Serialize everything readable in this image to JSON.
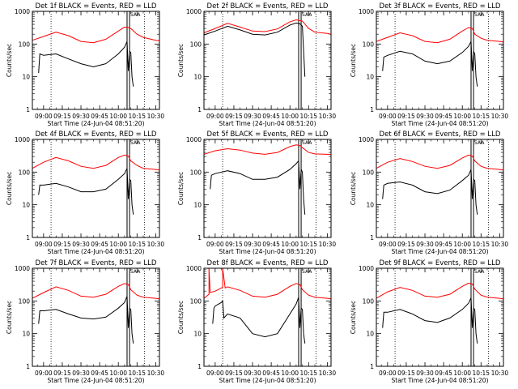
{
  "chart_data": [
    {
      "type": "line",
      "title": "Det 1f BLACK = Events, RED = LLD",
      "xlabel": "Start Time (24-Jun-04 08:51:20)",
      "ylabel": "Counts/sec",
      "xticks": [
        "09:00",
        "09:15",
        "09:30",
        "09:45",
        "10:00",
        "10:15",
        "10:30"
      ],
      "xlim": [
        "08:51",
        "10:33"
      ],
      "ylim": [
        1,
        1000
      ],
      "yscale": "log",
      "yticks": [
        "1",
        "10",
        "100",
        "1000"
      ],
      "grid": false,
      "series": [
        {
          "color": "#ff0000",
          "x": [
            "08:51",
            "09:00",
            "09:10",
            "09:20",
            "09:30",
            "09:40",
            "09:50",
            "10:00",
            "10:05",
            "10:08",
            "10:10",
            "10:15",
            "10:20",
            "10:30",
            "10:33"
          ],
          "values": [
            130,
            170,
            230,
            180,
            120,
            110,
            140,
            250,
            330,
            320,
            300,
            200,
            160,
            130,
            125
          ]
        },
        {
          "color": "#000000",
          "x": [
            "08:56",
            "08:57",
            "09:00",
            "09:10",
            "09:20",
            "09:30",
            "09:40",
            "09:50",
            "10:00",
            "10:05",
            "10:07",
            "10:08",
            "10:09",
            "10:10",
            "10:11",
            "10:12"
          ],
          "values": [
            13,
            50,
            45,
            50,
            35,
            25,
            20,
            25,
            50,
            80,
            120,
            15,
            60,
            55,
            10,
            5
          ]
        }
      ],
      "markers": {
        "dotted": [
          "09:06",
          "10:21"
        ],
        "solid": [
          "10:07",
          "10:09"
        ],
        "label": "SAA"
      }
    },
    {
      "type": "line",
      "title": "Det 2f BLACK = Events, RED = LLD",
      "xlabel": "Start Time (24-Jun-04 08:51:20)",
      "ylabel": "Counts/sec",
      "xticks": [
        "09:00",
        "09:15",
        "09:30",
        "09:45",
        "10:00",
        "10:15",
        "10:30"
      ],
      "xlim": [
        "08:51",
        "10:33"
      ],
      "ylim": [
        1,
        1000
      ],
      "yscale": "log",
      "yticks": [
        "1",
        "10",
        "100",
        "1000"
      ],
      "grid": false,
      "series": [
        {
          "color": "#ff0000",
          "x": [
            "08:51",
            "09:00",
            "09:10",
            "09:20",
            "09:30",
            "09:40",
            "09:50",
            "10:00",
            "10:05",
            "10:10",
            "10:15",
            "10:20",
            "10:30",
            "10:33"
          ],
          "values": [
            220,
            300,
            430,
            330,
            250,
            240,
            290,
            480,
            550,
            500,
            300,
            230,
            210,
            200
          ]
        },
        {
          "color": "#000000",
          "x": [
            "08:51",
            "09:00",
            "09:10",
            "09:20",
            "09:30",
            "09:40",
            "09:50",
            "10:00",
            "10:05",
            "10:08",
            "10:10",
            "10:12"
          ],
          "values": [
            190,
            250,
            350,
            270,
            200,
            190,
            230,
            380,
            440,
            420,
            350,
            10
          ]
        }
      ],
      "markers": {
        "dotted": [
          "09:06",
          "10:21"
        ],
        "solid": [
          "10:07",
          "10:09"
        ],
        "label": "SAA"
      }
    },
    {
      "type": "line",
      "title": "Det 3f BLACK = Events, RED = LLD",
      "xlabel": "Start Time (24-Jun-04 08:51:20)",
      "ylabel": "Counts/sec",
      "xticks": [
        "09:00",
        "09:15",
        "09:30",
        "09:45",
        "10:00",
        "10:15",
        "10:30"
      ],
      "xlim": [
        "08:51",
        "10:33"
      ],
      "ylim": [
        1,
        1000
      ],
      "yscale": "log",
      "yticks": [
        "1",
        "10",
        "100",
        "1000"
      ],
      "grid": false,
      "series": [
        {
          "color": "#ff0000",
          "x": [
            "08:51",
            "09:00",
            "09:10",
            "09:20",
            "09:30",
            "09:40",
            "09:50",
            "10:00",
            "10:05",
            "10:08",
            "10:10",
            "10:15",
            "10:20",
            "10:30",
            "10:33"
          ],
          "values": [
            120,
            160,
            220,
            180,
            120,
            110,
            140,
            250,
            320,
            300,
            200,
            150,
            130,
            120,
            115
          ]
        },
        {
          "color": "#000000",
          "x": [
            "08:56",
            "08:57",
            "09:00",
            "09:10",
            "09:20",
            "09:30",
            "09:40",
            "09:50",
            "10:00",
            "10:05",
            "10:07",
            "10:08",
            "10:09",
            "10:10",
            "10:11",
            "10:12"
          ],
          "values": [
            15,
            40,
            45,
            60,
            50,
            30,
            25,
            30,
            55,
            85,
            120,
            15,
            60,
            50,
            10,
            5
          ]
        }
      ],
      "markers": {
        "dotted": [
          "09:06",
          "10:21"
        ],
        "solid": [
          "10:07",
          "10:09"
        ],
        "label": "SAA"
      }
    },
    {
      "type": "line",
      "title": "Det 4f BLACK = Events, RED = LLD",
      "xlabel": "Start Time (24-Jun-04 08:51:20)",
      "ylabel": "Counts/sec",
      "xticks": [
        "09:00",
        "09:15",
        "09:30",
        "09:45",
        "10:00",
        "10:15",
        "10:30"
      ],
      "xlim": [
        "08:51",
        "10:33"
      ],
      "ylim": [
        1,
        1000
      ],
      "yscale": "log",
      "yticks": [
        "1",
        "10",
        "100",
        "1000"
      ],
      "grid": false,
      "series": [
        {
          "color": "#ff0000",
          "x": [
            "08:51",
            "09:00",
            "09:10",
            "09:20",
            "09:30",
            "09:40",
            "09:50",
            "10:00",
            "10:05",
            "10:08",
            "10:10",
            "10:15",
            "10:20",
            "10:30",
            "10:33"
          ],
          "values": [
            130,
            200,
            280,
            220,
            150,
            130,
            160,
            280,
            330,
            310,
            220,
            160,
            130,
            120,
            115
          ]
        },
        {
          "color": "#000000",
          "x": [
            "08:56",
            "08:57",
            "09:00",
            "09:10",
            "09:20",
            "09:30",
            "09:40",
            "09:50",
            "10:00",
            "10:05",
            "10:07",
            "10:08",
            "10:09",
            "10:10",
            "10:11",
            "10:12"
          ],
          "values": [
            20,
            40,
            40,
            45,
            35,
            25,
            25,
            30,
            60,
            90,
            130,
            15,
            60,
            55,
            10,
            5
          ]
        }
      ],
      "markers": {
        "dotted": [
          "09:06",
          "10:21"
        ],
        "solid": [
          "10:07",
          "10:09"
        ],
        "label": "SAA"
      }
    },
    {
      "type": "line",
      "title": "Det 5f BLACK = Events, RED = LLD",
      "xlabel": "Start Time (24-Jun-04 08:51:20)",
      "ylabel": "Counts/sec",
      "xticks": [
        "09:00",
        "09:15",
        "09:30",
        "09:45",
        "10:00",
        "10:15",
        "10:30"
      ],
      "xlim": [
        "08:51",
        "10:33"
      ],
      "ylim": [
        1,
        1000
      ],
      "yscale": "log",
      "yticks": [
        "1",
        "10",
        "100",
        "1000"
      ],
      "grid": false,
      "series": [
        {
          "color": "#ff0000",
          "x": [
            "08:51",
            "09:00",
            "09:10",
            "09:20",
            "09:30",
            "09:40",
            "09:50",
            "10:00",
            "10:05",
            "10:08",
            "10:10",
            "10:15",
            "10:20",
            "10:30",
            "10:33"
          ],
          "values": [
            350,
            450,
            520,
            470,
            380,
            350,
            400,
            600,
            680,
            650,
            560,
            400,
            360,
            350,
            345
          ]
        },
        {
          "color": "#000000",
          "x": [
            "08:56",
            "08:57",
            "09:00",
            "09:10",
            "09:20",
            "09:30",
            "09:40",
            "09:50",
            "10:00",
            "10:05",
            "10:07",
            "10:08",
            "10:09",
            "10:10",
            "10:11",
            "10:12"
          ],
          "values": [
            30,
            80,
            90,
            110,
            90,
            60,
            60,
            70,
            120,
            180,
            220,
            30,
            120,
            100,
            15,
            5
          ]
        }
      ],
      "markers": {
        "dotted": [
          "09:06",
          "10:21"
        ],
        "solid": [
          "10:07",
          "10:09"
        ],
        "label": "SAA"
      }
    },
    {
      "type": "line",
      "title": "Det 6f BLACK = Events, RED = LLD",
      "xlabel": "Start Time (24-Jun-04 08:51:20)",
      "ylabel": "Counts/sec",
      "xticks": [
        "09:00",
        "09:15",
        "09:30",
        "09:45",
        "10:00",
        "10:15",
        "10:30"
      ],
      "xlim": [
        "08:51",
        "10:33"
      ],
      "ylim": [
        1,
        1000
      ],
      "yscale": "log",
      "yticks": [
        "1",
        "10",
        "100",
        "1000"
      ],
      "grid": false,
      "series": [
        {
          "color": "#ff0000",
          "x": [
            "08:51",
            "09:00",
            "09:10",
            "09:20",
            "09:30",
            "09:40",
            "09:50",
            "10:00",
            "10:05",
            "10:08",
            "10:10",
            "10:15",
            "10:20",
            "10:30",
            "10:33"
          ],
          "values": [
            130,
            200,
            260,
            210,
            150,
            130,
            160,
            270,
            330,
            310,
            220,
            150,
            130,
            120,
            115
          ]
        },
        {
          "color": "#000000",
          "x": [
            "08:56",
            "08:57",
            "09:00",
            "09:10",
            "09:20",
            "09:30",
            "09:40",
            "09:50",
            "10:00",
            "10:05",
            "10:07",
            "10:08",
            "10:09",
            "10:10",
            "10:11",
            "10:12"
          ],
          "values": [
            15,
            40,
            45,
            50,
            40,
            25,
            22,
            28,
            55,
            80,
            120,
            15,
            60,
            55,
            10,
            5
          ]
        }
      ],
      "markers": {
        "dotted": [
          "09:06",
          "10:21"
        ],
        "solid": [
          "10:07",
          "10:09"
        ],
        "label": "SAA"
      }
    },
    {
      "type": "line",
      "title": "Det 7f BLACK = Events, RED = LLD",
      "xlabel": "Start Time (24-Jun-04 08:51:20)",
      "ylabel": "Counts/sec",
      "xticks": [
        "09:00",
        "09:15",
        "09:30",
        "09:45",
        "10:00",
        "10:15",
        "10:30"
      ],
      "xlim": [
        "08:51",
        "10:33"
      ],
      "ylim": [
        1,
        1000
      ],
      "yscale": "log",
      "yticks": [
        "1",
        "10",
        "100",
        "1000"
      ],
      "grid": false,
      "series": [
        {
          "color": "#ff0000",
          "x": [
            "08:51",
            "09:00",
            "09:10",
            "09:20",
            "09:30",
            "09:40",
            "09:50",
            "10:00",
            "10:05",
            "10:08",
            "10:10",
            "10:15",
            "10:20",
            "10:30",
            "10:33"
          ],
          "values": [
            120,
            180,
            270,
            210,
            140,
            130,
            160,
            280,
            340,
            320,
            220,
            150,
            130,
            120,
            115
          ]
        },
        {
          "color": "#000000",
          "x": [
            "08:56",
            "08:57",
            "09:00",
            "09:10",
            "09:20",
            "09:30",
            "09:40",
            "09:50",
            "10:00",
            "10:05",
            "10:07",
            "10:08",
            "10:09",
            "10:10",
            "10:11",
            "10:12"
          ],
          "values": [
            20,
            50,
            50,
            55,
            40,
            30,
            28,
            32,
            60,
            90,
            140,
            15,
            60,
            55,
            10,
            5
          ]
        }
      ],
      "markers": {
        "dotted": [
          "09:06",
          "10:21"
        ],
        "solid": [
          "10:07",
          "10:09"
        ],
        "label": "SAA"
      }
    },
    {
      "type": "line",
      "title": "Det 8f BLACK = Events, RED = LLD",
      "xlabel": "Start Time (24-Jun-04 08:51:20)",
      "ylabel": "Counts/sec",
      "xticks": [
        "09:00",
        "09:15",
        "09:30",
        "09:45",
        "10:00",
        "10:15",
        "10:30"
      ],
      "xlim": [
        "08:51",
        "10:33"
      ],
      "ylim": [
        1,
        1000
      ],
      "yscale": "log",
      "yticks": [
        "1",
        "10",
        "100",
        "1000"
      ],
      "grid": false,
      "series": [
        {
          "color": "#ff0000",
          "x": [
            "08:51",
            "08:55",
            "08:55",
            "08:56",
            "09:00",
            "09:05",
            "09:06",
            "09:06",
            "09:08",
            "09:10",
            "09:20",
            "09:30",
            "09:40",
            "09:50",
            "10:00",
            "10:05",
            "10:08",
            "10:10",
            "10:15",
            "10:20",
            "10:30",
            "10:33"
          ],
          "values": [
            120,
            160,
            1000,
            180,
            200,
            250,
            260,
            1000,
            250,
            270,
            210,
            140,
            130,
            160,
            280,
            340,
            320,
            220,
            150,
            130,
            120,
            115
          ]
        },
        {
          "color": "#000000",
          "x": [
            "08:58",
            "08:59",
            "09:00",
            "09:05",
            "09:06",
            "09:07",
            "09:10",
            "09:20",
            "09:30",
            "09:40",
            "09:50",
            "10:00",
            "10:05",
            "10:07",
            "10:08",
            "10:09",
            "10:10",
            "10:11",
            "10:12"
          ],
          "values": [
            20,
            60,
            70,
            90,
            100,
            30,
            40,
            30,
            10,
            8,
            10,
            40,
            80,
            130,
            15,
            60,
            55,
            10,
            5
          ]
        }
      ],
      "markers": {
        "dotted": [
          "09:06",
          "10:21"
        ],
        "solid": [
          "10:07",
          "10:09"
        ],
        "label": "SAA"
      }
    },
    {
      "type": "line",
      "title": "Det 9f BLACK = Events, RED = LLD",
      "xlabel": "Start Time (24-Jun-04 08:51:20)",
      "ylabel": "Counts/sec",
      "xticks": [
        "09:00",
        "09:15",
        "09:30",
        "09:45",
        "10:00",
        "10:15",
        "10:30"
      ],
      "xlim": [
        "08:51",
        "10:33"
      ],
      "ylim": [
        1,
        1000
      ],
      "yscale": "log",
      "yticks": [
        "1",
        "10",
        "100",
        "1000"
      ],
      "grid": false,
      "series": [
        {
          "color": "#ff0000",
          "x": [
            "08:51",
            "09:00",
            "09:10",
            "09:20",
            "09:30",
            "09:40",
            "09:50",
            "10:00",
            "10:05",
            "10:08",
            "10:10",
            "10:15",
            "10:20",
            "10:30",
            "10:33"
          ],
          "values": [
            120,
            190,
            260,
            210,
            140,
            130,
            160,
            280,
            350,
            330,
            230,
            150,
            130,
            120,
            115
          ]
        },
        {
          "color": "#000000",
          "x": [
            "08:56",
            "08:57",
            "09:00",
            "09:10",
            "09:20",
            "09:30",
            "09:40",
            "09:50",
            "10:00",
            "10:05",
            "10:07",
            "10:08",
            "10:09",
            "10:10",
            "10:11",
            "10:12"
          ],
          "values": [
            15,
            45,
            45,
            55,
            40,
            25,
            22,
            30,
            55,
            85,
            125,
            15,
            60,
            55,
            10,
            5
          ]
        }
      ],
      "markers": {
        "dotted": [
          "09:06",
          "10:21"
        ],
        "solid": [
          "10:07",
          "10:09"
        ],
        "label": "SAA"
      }
    }
  ]
}
